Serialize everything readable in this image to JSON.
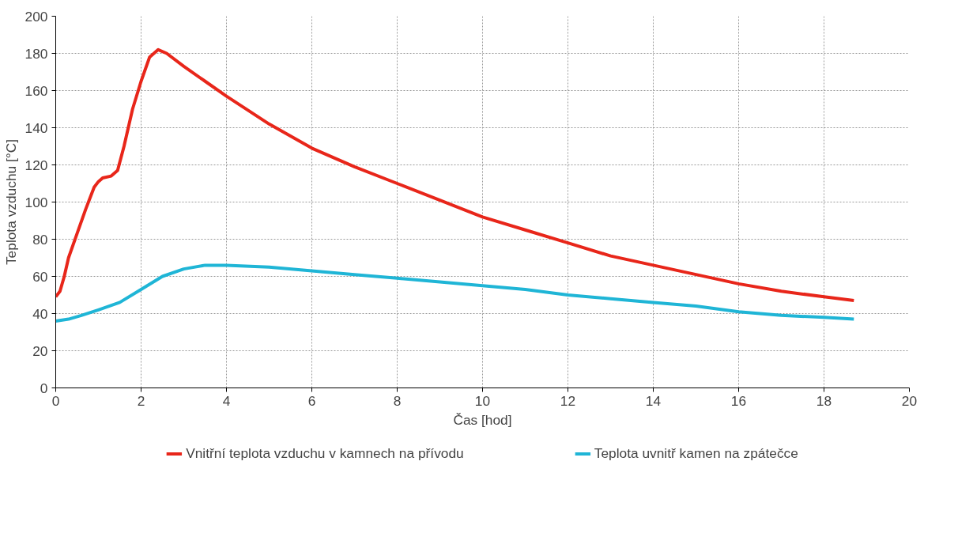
{
  "chart_data": {
    "type": "line",
    "xlabel": "Čas [hod]",
    "ylabel": "Teplota vzduchu [°C]",
    "xlim": [
      0,
      20
    ],
    "xticks": [
      0,
      2,
      4,
      6,
      8,
      10,
      12,
      14,
      16,
      18,
      20
    ],
    "ylim": [
      0,
      200
    ],
    "yticks": [
      0,
      20,
      40,
      60,
      80,
      100,
      120,
      140,
      160,
      180,
      200
    ],
    "grid": true,
    "legend": "bottom",
    "line_style": "solid",
    "marker": "none",
    "series": [
      {
        "name": "Vnitřní teplota vzduchu v kamnech na přívodu",
        "color": "#e8261a",
        "x": [
          0,
          0.1,
          0.2,
          0.3,
          0.5,
          0.7,
          0.9,
          1.0,
          1.1,
          1.3,
          1.45,
          1.6,
          1.8,
          2.0,
          2.2,
          2.4,
          2.6,
          3,
          3.5,
          4,
          5,
          6,
          7,
          8,
          9,
          10,
          11,
          12,
          13,
          14,
          15,
          16,
          17,
          18,
          18.7
        ],
        "values": [
          49,
          52,
          60,
          70,
          83,
          96,
          108,
          111,
          113,
          114,
          117,
          130,
          150,
          165,
          178,
          182,
          180,
          173,
          165,
          157,
          142,
          129,
          119,
          110,
          101,
          92,
          85,
          78,
          71,
          66,
          61,
          56,
          52,
          49,
          47
        ]
      },
      {
        "name": "Teplota uvnitř kamen na zpátečce",
        "color": "#1fb5d6",
        "x": [
          0,
          0.3,
          0.6,
          1,
          1.5,
          2,
          2.5,
          3,
          3.5,
          4,
          5,
          6,
          7,
          8,
          9,
          10,
          11,
          12,
          13,
          14,
          15,
          16,
          17,
          18,
          18.7
        ],
        "values": [
          36,
          37,
          39,
          42,
          46,
          53,
          60,
          64,
          66,
          66,
          65,
          63,
          61,
          59,
          57,
          55,
          53,
          50,
          48,
          46,
          44,
          41,
          39,
          38,
          37
        ]
      }
    ]
  }
}
